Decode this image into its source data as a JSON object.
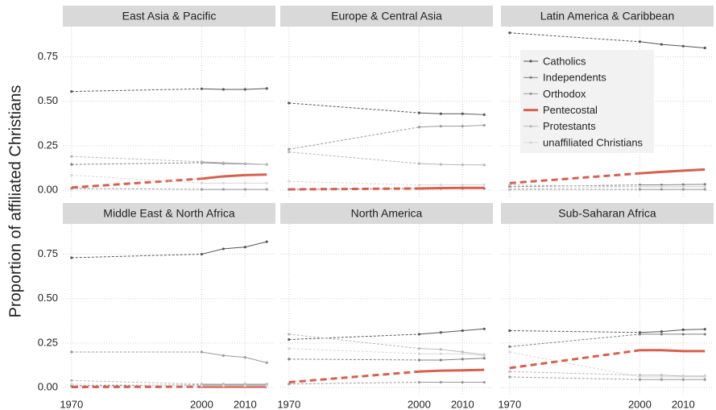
{
  "chart_data": [
    {
      "type": "line",
      "title": "East Asia & Pacific",
      "ylabel": "Proportion of affiliated Christians",
      "x": [
        1970,
        2000,
        2005,
        2010,
        2015
      ],
      "xlim": [
        1968,
        2017
      ],
      "xticks": [
        1970,
        2000,
        2010
      ],
      "ylim": [
        -0.04,
        0.92
      ],
      "yticks": [
        {
          "value": 0,
          "label": "0.00"
        },
        {
          "value": 0.25,
          "label": "0.25"
        },
        {
          "value": 0.5,
          "label": "0.50"
        },
        {
          "value": 0.75,
          "label": "0.75"
        }
      ],
      "grid": true,
      "series": [
        {
          "name": "Catholics",
          "color": "#555555",
          "values": [
            0.555,
            0.57,
            0.567,
            0.567,
            0.572
          ]
        },
        {
          "name": "Independents",
          "color": "#808080",
          "values": [
            0.145,
            0.155,
            0.15,
            0.148,
            0.145
          ]
        },
        {
          "name": "Orthodox",
          "color": "#9a9a9a",
          "values": [
            0.01,
            0.005,
            0.005,
            0.005,
            0.005
          ]
        },
        {
          "name": "Pentecostal",
          "color": "#d6604d",
          "values": [
            0.015,
            0.065,
            0.078,
            0.085,
            0.088
          ]
        },
        {
          "name": "Protestants",
          "color": "#b8b8b8",
          "values": [
            0.19,
            0.16,
            0.155,
            0.15,
            0.145
          ]
        },
        {
          "name": "unaffiliated Christians",
          "color": "#d8d8d8",
          "values": [
            0.085,
            0.04,
            0.04,
            0.04,
            0.04
          ]
        }
      ]
    },
    {
      "type": "line",
      "title": "Europe & Central Asia",
      "x": [
        1970,
        2000,
        2005,
        2010,
        2015
      ],
      "xlim": [
        1968,
        2017
      ],
      "xticks": [
        1970,
        2000,
        2010
      ],
      "ylim": [
        -0.04,
        0.92
      ],
      "yticks": [
        0,
        0.25,
        0.5,
        0.75
      ],
      "grid": true,
      "series": [
        {
          "name": "Catholics",
          "color": "#555555",
          "values": [
            0.49,
            0.435,
            0.43,
            0.43,
            0.425
          ]
        },
        {
          "name": "Independents",
          "color": "#808080",
          "values": [
            0.005,
            0.01,
            0.01,
            0.01,
            0.01
          ]
        },
        {
          "name": "Orthodox",
          "color": "#9a9a9a",
          "values": [
            0.23,
            0.355,
            0.36,
            0.36,
            0.365
          ]
        },
        {
          "name": "Pentecostal",
          "color": "#d6604d",
          "values": [
            0.005,
            0.01,
            0.012,
            0.013,
            0.013
          ]
        },
        {
          "name": "Protestants",
          "color": "#b8b8b8",
          "values": [
            0.215,
            0.15,
            0.145,
            0.143,
            0.142
          ]
        },
        {
          "name": "unaffiliated Christians",
          "color": "#d8d8d8",
          "values": [
            0.05,
            0.03,
            0.03,
            0.03,
            0.03
          ]
        }
      ]
    },
    {
      "type": "line",
      "title": "Latin America & Caribbean",
      "x": [
        1970,
        2000,
        2005,
        2010,
        2015
      ],
      "xlim": [
        1968,
        2017
      ],
      "xticks": [
        1970,
        2000,
        2010
      ],
      "ylim": [
        -0.04,
        0.92
      ],
      "yticks": [
        0,
        0.25,
        0.5,
        0.75
      ],
      "grid": true,
      "series": [
        {
          "name": "Catholics",
          "color": "#555555",
          "values": [
            0.885,
            0.835,
            0.82,
            0.81,
            0.8
          ]
        },
        {
          "name": "Independents",
          "color": "#808080",
          "values": [
            0.02,
            0.03,
            0.03,
            0.032,
            0.033
          ]
        },
        {
          "name": "Orthodox",
          "color": "#9a9a9a",
          "values": [
            0.005,
            0.005,
            0.005,
            0.005,
            0.005
          ]
        },
        {
          "name": "Pentecostal",
          "color": "#d6604d",
          "values": [
            0.04,
            0.095,
            0.103,
            0.11,
            0.117
          ]
        },
        {
          "name": "Protestants",
          "color": "#b8b8b8",
          "values": [
            0.03,
            0.02,
            0.02,
            0.02,
            0.02
          ]
        },
        {
          "name": "unaffiliated Christians",
          "color": "#d8d8d8",
          "values": [
            0.01,
            0.02,
            0.02,
            0.02,
            0.02
          ]
        }
      ]
    },
    {
      "type": "line",
      "title": "Middle East & North Africa",
      "x": [
        1970,
        2000,
        2005,
        2010,
        2015
      ],
      "xlim": [
        1968,
        2017
      ],
      "xticks": [
        1970,
        2000,
        2010
      ],
      "ylim": [
        -0.04,
        0.92
      ],
      "yticks": [
        {
          "value": 0,
          "label": "0.00"
        },
        {
          "value": 0.25,
          "label": "0.25"
        },
        {
          "value": 0.5,
          "label": "0.50"
        },
        {
          "value": 0.75,
          "label": "0.75"
        }
      ],
      "grid": true,
      "series": [
        {
          "name": "Catholics",
          "color": "#555555",
          "values": [
            0.73,
            0.75,
            0.78,
            0.79,
            0.82
          ]
        },
        {
          "name": "Independents",
          "color": "#808080",
          "values": [
            0.01,
            0.015,
            0.015,
            0.015,
            0.015
          ]
        },
        {
          "name": "Orthodox",
          "color": "#9a9a9a",
          "values": [
            0.2,
            0.2,
            0.18,
            0.17,
            0.14
          ]
        },
        {
          "name": "Pentecostal",
          "color": "#d6604d",
          "values": [
            0.003,
            0.005,
            0.005,
            0.005,
            0.005
          ]
        },
        {
          "name": "Protestants",
          "color": "#b8b8b8",
          "values": [
            0.04,
            0.02,
            0.02,
            0.02,
            0.02
          ]
        },
        {
          "name": "unaffiliated Christians",
          "color": "#d8d8d8",
          "values": [
            0.02,
            0.01,
            0.01,
            0.01,
            0.01
          ]
        }
      ]
    },
    {
      "type": "line",
      "title": "North America",
      "x": [
        1970,
        2000,
        2005,
        2010,
        2015
      ],
      "xlim": [
        1968,
        2017
      ],
      "xticks": [
        1970,
        2000,
        2010
      ],
      "ylim": [
        -0.04,
        0.92
      ],
      "yticks": [
        0,
        0.25,
        0.5,
        0.75
      ],
      "grid": true,
      "series": [
        {
          "name": "Catholics",
          "color": "#555555",
          "values": [
            0.27,
            0.3,
            0.31,
            0.32,
            0.33
          ]
        },
        {
          "name": "Independents",
          "color": "#808080",
          "values": [
            0.16,
            0.155,
            0.155,
            0.16,
            0.165
          ]
        },
        {
          "name": "Orthodox",
          "color": "#9a9a9a",
          "values": [
            0.02,
            0.03,
            0.03,
            0.03,
            0.03
          ]
        },
        {
          "name": "Pentecostal",
          "color": "#d6604d",
          "values": [
            0.03,
            0.09,
            0.095,
            0.097,
            0.1
          ]
        },
        {
          "name": "Protestants",
          "color": "#b8b8b8",
          "values": [
            0.3,
            0.22,
            0.215,
            0.2,
            0.185
          ]
        },
        {
          "name": "unaffiliated Christians",
          "color": "#d8d8d8",
          "values": [
            0.22,
            0.19,
            0.19,
            0.19,
            0.18
          ]
        }
      ]
    },
    {
      "type": "line",
      "title": "Sub-Saharan Africa",
      "x": [
        1970,
        2000,
        2005,
        2010,
        2015
      ],
      "xlim": [
        1968,
        2017
      ],
      "xticks": [
        1970,
        2000,
        2010
      ],
      "ylim": [
        -0.04,
        0.92
      ],
      "yticks": [
        0,
        0.25,
        0.5,
        0.75
      ],
      "grid": true,
      "series": [
        {
          "name": "Catholics",
          "color": "#555555",
          "values": [
            0.32,
            0.31,
            0.315,
            0.325,
            0.328
          ]
        },
        {
          "name": "Independents",
          "color": "#808080",
          "values": [
            0.23,
            0.3,
            0.3,
            0.3,
            0.3
          ]
        },
        {
          "name": "Orthodox",
          "color": "#9a9a9a",
          "values": [
            0.06,
            0.045,
            0.045,
            0.045,
            0.045
          ]
        },
        {
          "name": "Pentecostal",
          "color": "#d6604d",
          "values": [
            0.11,
            0.21,
            0.21,
            0.205,
            0.205
          ]
        },
        {
          "name": "Protestants",
          "color": "#b8b8b8",
          "values": [
            0.09,
            0.07,
            0.07,
            0.065,
            0.065
          ]
        },
        {
          "name": "unaffiliated Christians",
          "color": "#d8d8d8",
          "values": [
            0.2,
            0.06,
            0.06,
            0.06,
            0.06
          ]
        }
      ]
    }
  ]
}
